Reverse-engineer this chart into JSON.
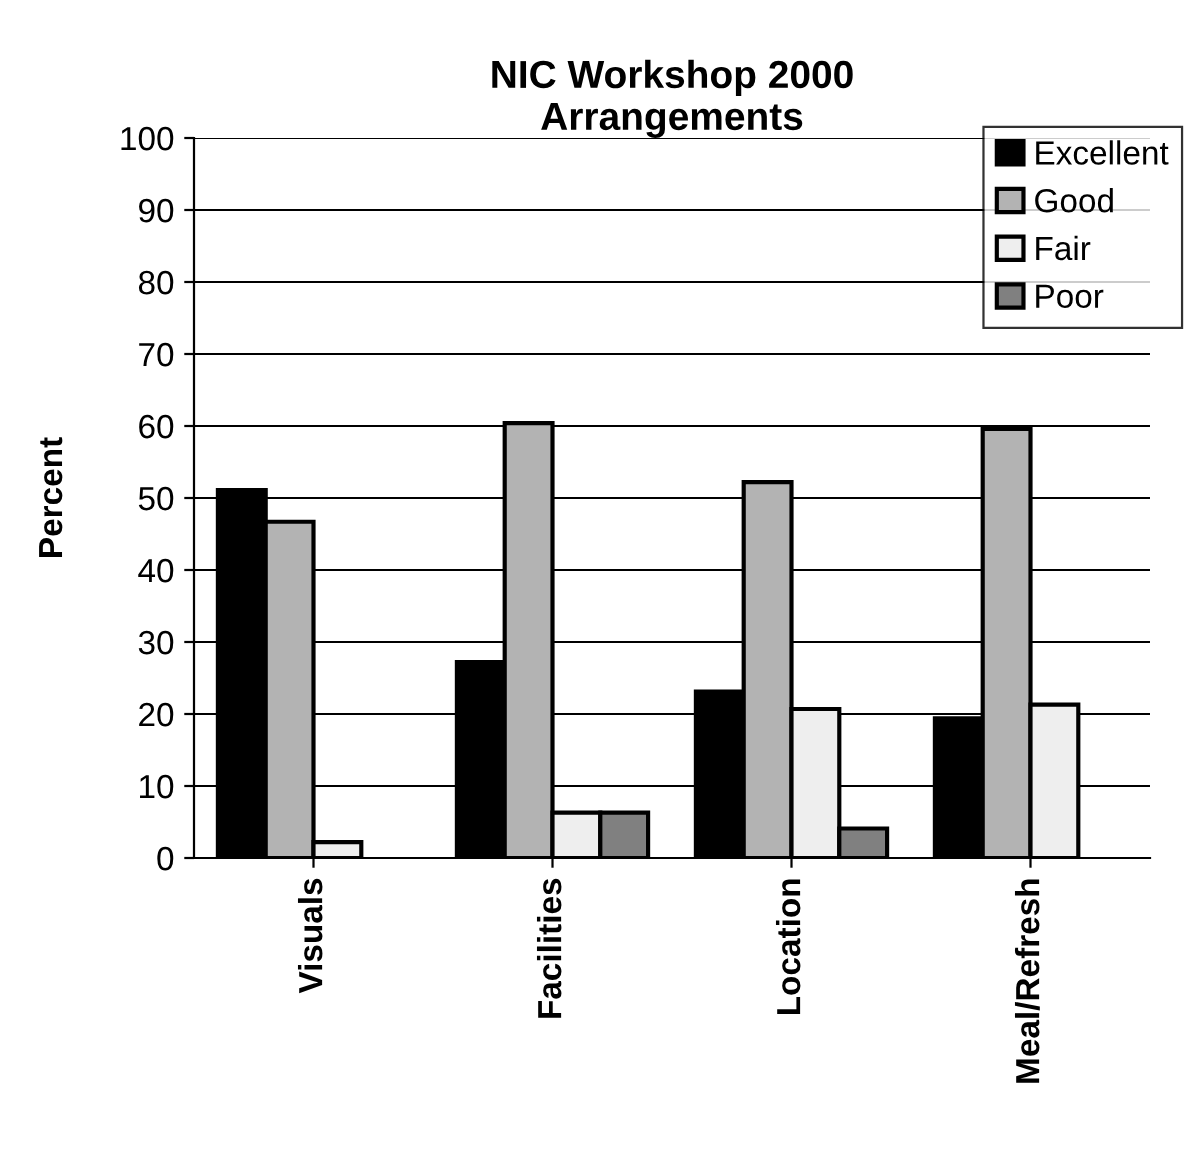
{
  "chart_data": {
    "type": "bar",
    "title": "NIC Workshop 2000\nArrangements",
    "ylabel": "Percent",
    "categories": [
      "Visuals",
      "Facilities",
      "Location",
      "Meal/Refresh"
    ],
    "series": [
      {
        "name": "Excellent",
        "color": "#000000",
        "values": [
          51.1,
          27.2,
          23.1,
          19.4
        ]
      },
      {
        "name": "Good",
        "color": "#b3b3b3",
        "values": [
          46.7,
          60.4,
          52.2,
          59.6
        ]
      },
      {
        "name": "Fair",
        "color": "#eeeeee",
        "values": [
          2.2,
          6.3,
          20.7,
          21.3
        ]
      },
      {
        "name": "Poor",
        "color": "#808080",
        "values": [
          null,
          6.3,
          4.1,
          null
        ]
      }
    ],
    "ylim": [
      0,
      100
    ],
    "yticks": [
      0,
      10,
      20,
      30,
      40,
      50,
      60,
      70,
      80,
      90,
      100
    ],
    "grid": "y",
    "legend": "top right"
  }
}
